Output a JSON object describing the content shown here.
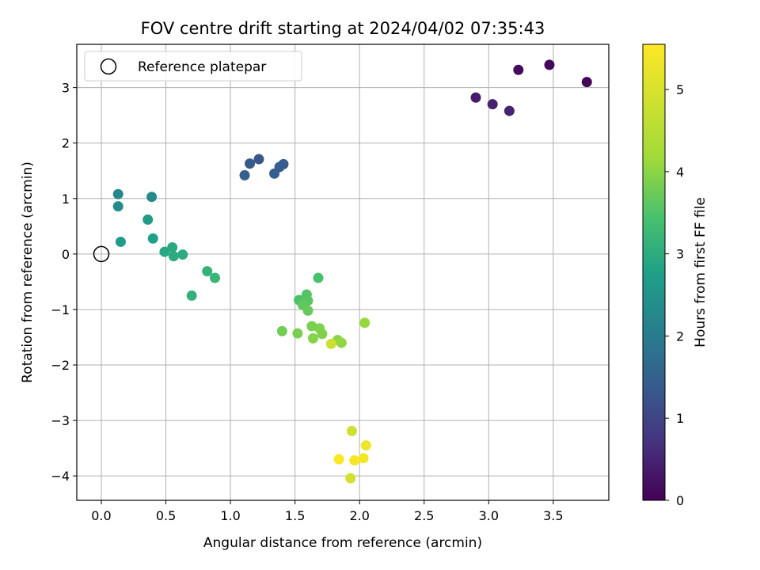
{
  "chart_data": {
    "type": "scatter",
    "title": "FOV centre drift starting at 2024/04/02 07:35:43",
    "xlabel": "Angular distance from reference (arcmin)",
    "ylabel": "Rotation from reference (arcmin)",
    "xlim": [
      -0.19,
      3.93
    ],
    "ylim": [
      -4.44,
      3.78
    ],
    "xticks": [
      0.0,
      0.5,
      1.0,
      1.5,
      2.0,
      2.5,
      3.0,
      3.5
    ],
    "xtick_labels": [
      "0.0",
      "0.5",
      "1.0",
      "1.5",
      "2.0",
      "2.5",
      "3.0",
      "3.5"
    ],
    "yticks": [
      -4,
      -3,
      -2,
      -1,
      0,
      1,
      2,
      3
    ],
    "ytick_labels": [
      "−4",
      "−3",
      "−2",
      "−1",
      "0",
      "1",
      "2",
      "3"
    ],
    "grid": true,
    "legend": {
      "placement": "top-left",
      "entries": [
        "Reference platepar"
      ]
    },
    "reference_point": {
      "x": 0.0,
      "y": 0.0
    },
    "colorbar": {
      "label": "Hours from first FF file",
      "range": [
        0,
        5.55
      ],
      "ticks": [
        0,
        1,
        2,
        3,
        4,
        5
      ],
      "tick_labels": [
        "0",
        "1",
        "2",
        "3",
        "4",
        "5"
      ],
      "colormap": "viridis"
    },
    "points": [
      {
        "x": 3.76,
        "y": 3.1,
        "c": 0.05
      },
      {
        "x": 3.47,
        "y": 3.41,
        "c": 0.1
      },
      {
        "x": 3.23,
        "y": 3.32,
        "c": 0.15
      },
      {
        "x": 2.9,
        "y": 2.82,
        "c": 0.4
      },
      {
        "x": 3.03,
        "y": 2.7,
        "c": 0.45
      },
      {
        "x": 3.16,
        "y": 2.58,
        "c": 0.5
      },
      {
        "x": 1.22,
        "y": 1.71,
        "c": 1.3
      },
      {
        "x": 1.15,
        "y": 1.63,
        "c": 1.35
      },
      {
        "x": 1.41,
        "y": 1.62,
        "c": 1.4
      },
      {
        "x": 1.38,
        "y": 1.57,
        "c": 1.4
      },
      {
        "x": 1.11,
        "y": 1.42,
        "c": 1.45
      },
      {
        "x": 1.34,
        "y": 1.45,
        "c": 1.45
      },
      {
        "x": 0.13,
        "y": 1.08,
        "c": 2.25
      },
      {
        "x": 0.39,
        "y": 1.03,
        "c": 2.3
      },
      {
        "x": 0.13,
        "y": 0.86,
        "c": 2.35
      },
      {
        "x": 0.36,
        "y": 0.62,
        "c": 2.65
      },
      {
        "x": 0.4,
        "y": 0.28,
        "c": 2.75
      },
      {
        "x": 0.15,
        "y": 0.22,
        "c": 2.7
      },
      {
        "x": 0.49,
        "y": 0.04,
        "c": 2.9
      },
      {
        "x": 0.55,
        "y": 0.12,
        "c": 2.95
      },
      {
        "x": 0.56,
        "y": -0.04,
        "c": 3.0
      },
      {
        "x": 0.63,
        "y": -0.01,
        "c": 3.0
      },
      {
        "x": 0.82,
        "y": -0.31,
        "c": 3.15
      },
      {
        "x": 0.88,
        "y": -0.43,
        "c": 3.2
      },
      {
        "x": 0.7,
        "y": -0.75,
        "c": 3.1
      },
      {
        "x": 1.68,
        "y": -0.43,
        "c": 3.45
      },
      {
        "x": 1.53,
        "y": -0.83,
        "c": 3.5
      },
      {
        "x": 1.59,
        "y": -0.73,
        "c": 3.55
      },
      {
        "x": 1.6,
        "y": -0.84,
        "c": 3.6
      },
      {
        "x": 1.56,
        "y": -0.92,
        "c": 3.65
      },
      {
        "x": 1.6,
        "y": -1.02,
        "c": 3.7
      },
      {
        "x": 1.4,
        "y": -1.39,
        "c": 3.8
      },
      {
        "x": 1.52,
        "y": -1.43,
        "c": 3.85
      },
      {
        "x": 1.63,
        "y": -1.3,
        "c": 3.85
      },
      {
        "x": 1.69,
        "y": -1.34,
        "c": 3.9
      },
      {
        "x": 1.71,
        "y": -1.44,
        "c": 3.9
      },
      {
        "x": 1.64,
        "y": -1.52,
        "c": 3.95
      },
      {
        "x": 1.83,
        "y": -1.55,
        "c": 4.0
      },
      {
        "x": 1.86,
        "y": -1.6,
        "c": 4.05
      },
      {
        "x": 2.04,
        "y": -1.24,
        "c": 4.1
      },
      {
        "x": 1.78,
        "y": -1.62,
        "c": 4.8
      },
      {
        "x": 1.94,
        "y": -3.19,
        "c": 4.85
      },
      {
        "x": 1.93,
        "y": -4.04,
        "c": 4.9
      },
      {
        "x": 2.05,
        "y": -3.45,
        "c": 5.3
      },
      {
        "x": 2.03,
        "y": -3.68,
        "c": 5.4
      },
      {
        "x": 1.96,
        "y": -3.72,
        "c": 5.45
      },
      {
        "x": 1.84,
        "y": -3.7,
        "c": 5.5
      }
    ]
  }
}
